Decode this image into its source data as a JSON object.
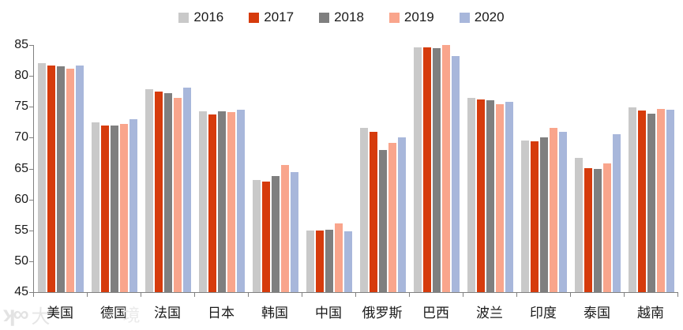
{
  "chart_data": {
    "type": "bar",
    "title": "",
    "xlabel": "",
    "ylabel": "",
    "categories": [
      "美国",
      "德国",
      "法国",
      "日本",
      "韩国",
      "中国",
      "俄罗斯",
      "巴西",
      "波兰",
      "印度",
      "泰国",
      "越南"
    ],
    "series": [
      {
        "name": "2016",
        "color": "#c9c9c9",
        "pattern": "dots",
        "values": [
          82.0,
          72.5,
          77.9,
          74.3,
          63.2,
          55.0,
          71.6,
          84.6,
          76.4,
          69.5,
          66.7,
          74.9
        ]
      },
      {
        "name": "2017",
        "color": "#d63b0c",
        "pattern": "solid",
        "values": [
          81.7,
          72.0,
          77.5,
          73.8,
          62.9,
          55.0,
          71.0,
          84.6,
          76.2,
          69.4,
          65.1,
          74.4
        ]
      },
      {
        "name": "2018",
        "color": "#7f7f7f",
        "pattern": "hatch",
        "values": [
          81.5,
          72.0,
          77.2,
          74.3,
          63.8,
          55.1,
          68.0,
          84.5,
          76.1,
          70.1,
          65.0,
          73.9
        ]
      },
      {
        "name": "2019",
        "color": "#f9a58c",
        "pattern": "solid",
        "values": [
          81.2,
          72.2,
          76.5,
          74.2,
          65.6,
          56.1,
          69.2,
          85.0,
          75.4,
          71.6,
          65.8,
          74.6
        ]
      },
      {
        "name": "2020",
        "color": "#a8b7db",
        "pattern": "solid",
        "values": [
          81.7,
          73.0,
          78.1,
          74.5,
          64.4,
          54.8,
          70.0,
          83.2,
          75.8,
          70.9,
          70.5,
          74.5
        ]
      }
    ],
    "ylim": [
      45,
      85
    ],
    "yticks": [
      45,
      50,
      55,
      60,
      65,
      70,
      75,
      80,
      85
    ],
    "grid": false,
    "legend_position": "top-center",
    "axis_color": "#808080",
    "text_color": "#1a1a1a"
  },
  "watermark": {
    "logo": "infinity-logo",
    "char1": "大",
    "char2": "境"
  }
}
